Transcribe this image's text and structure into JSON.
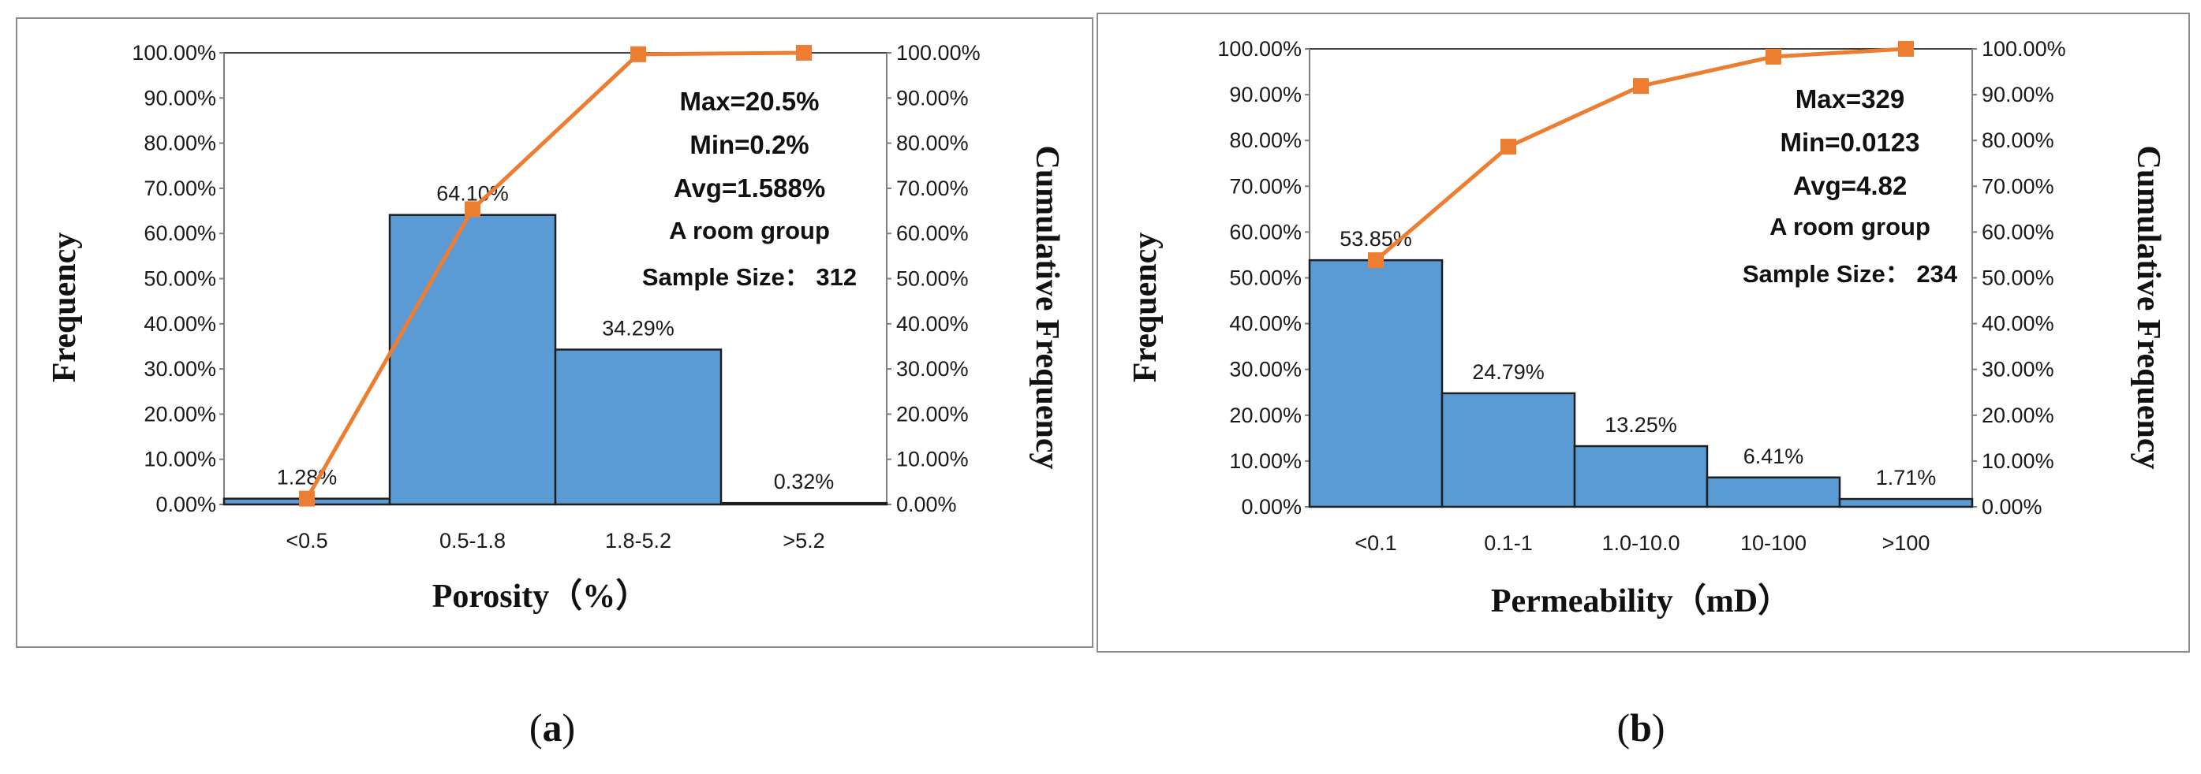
{
  "chart_data": [
    {
      "type": "bar",
      "panel": "(a)",
      "categories": [
        "<0.5",
        "0.5-1.8",
        "1.8-5.2",
        ">5.2"
      ],
      "series": [
        {
          "name": "",
          "kind": "bar",
          "values": [
            1.28,
            64.1,
            34.29,
            0.32
          ],
          "labels": [
            "1.28%",
            "64.10%",
            "34.29%",
            "0.32%"
          ]
        },
        {
          "name": "",
          "kind": "line",
          "values": [
            1.28,
            65.38,
            99.68,
            100.0
          ]
        }
      ],
      "xlabel": "Porosity（%）",
      "ylabel": "Frequency",
      "y2label": "Cumulative Frequency",
      "ylim": [
        0,
        100
      ],
      "y2lim": [
        0,
        100
      ],
      "yticks": [
        "0.00%",
        "10.00%",
        "20.00%",
        "30.00%",
        "40.00%",
        "50.00%",
        "60.00%",
        "70.00%",
        "80.00%",
        "90.00%",
        "100.00%"
      ],
      "annotations": [
        "Max=20.5%",
        "Min=0.2%",
        "Avg=1.588%",
        "A room group",
        "Sample Size： 312"
      ],
      "colors": {
        "bar": "#5b9bd5",
        "bar_edge": "#1f1f1f",
        "line": "#ed7d31"
      }
    },
    {
      "type": "bar",
      "panel": "(b)",
      "categories": [
        "<0.1",
        "0.1-1",
        "1.0-10.0",
        "10-100",
        ">100"
      ],
      "series": [
        {
          "name": "",
          "kind": "bar",
          "values": [
            53.85,
            24.79,
            13.25,
            6.41,
            1.71
          ],
          "labels": [
            "53.85%",
            "24.79%",
            "13.25%",
            "6.41%",
            "1.71%"
          ]
        },
        {
          "name": "",
          "kind": "line",
          "values": [
            53.85,
            78.64,
            91.89,
            98.3,
            100.0
          ]
        }
      ],
      "xlabel": "Permeability（mD）",
      "ylabel": "Frequency",
      "y2label": "Cumulative Frequency",
      "ylim": [
        0,
        100
      ],
      "y2lim": [
        0,
        100
      ],
      "yticks": [
        "0.00%",
        "10.00%",
        "20.00%",
        "30.00%",
        "40.00%",
        "50.00%",
        "60.00%",
        "70.00%",
        "80.00%",
        "90.00%",
        "100.00%"
      ],
      "annotations": [
        "Max=329",
        "Min=0.0123",
        "Avg=4.82",
        "A room group",
        "Sample Size： 234"
      ],
      "colors": {
        "bar": "#5b9bd5",
        "bar_edge": "#1f1f1f",
        "line": "#ed7d31"
      }
    }
  ]
}
